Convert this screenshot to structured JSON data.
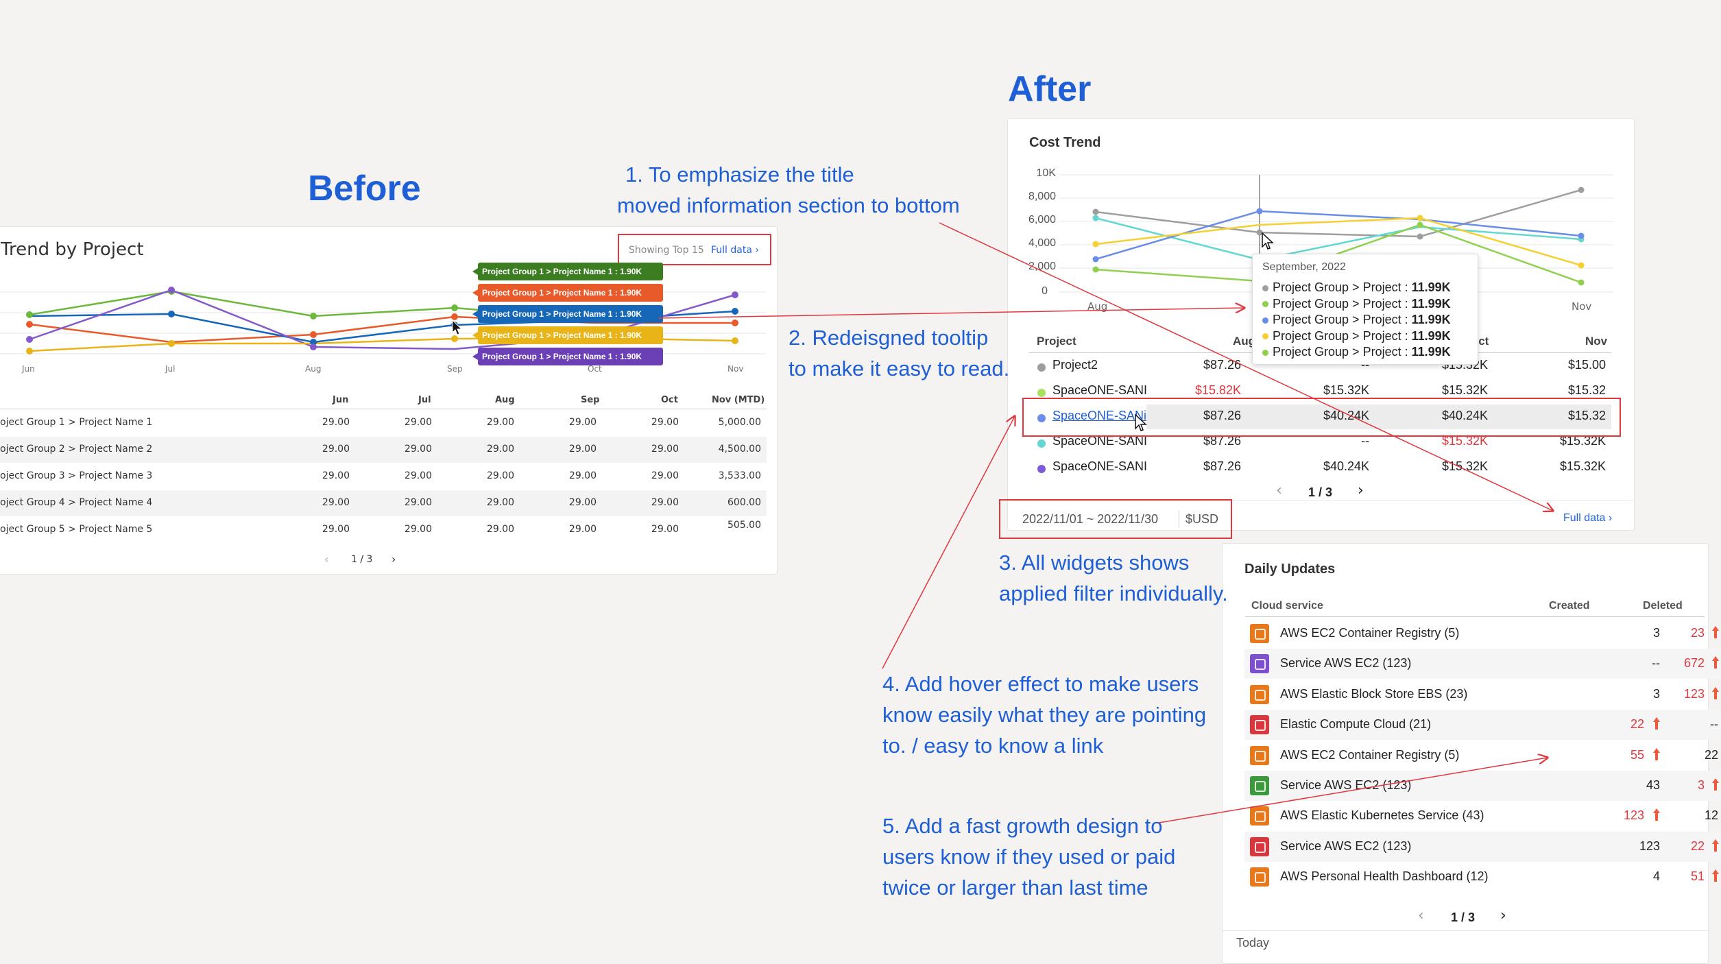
{
  "before": {
    "heading": "Before",
    "widget_title": "Trend by Project",
    "showing": "Showing Top 15",
    "full_data": "Full data",
    "x_labels": [
      "Jun",
      "Jul",
      "Aug",
      "Sep",
      "Oct",
      "Nov"
    ],
    "tooltip_rows": [
      {
        "text": "Project Group 1 > Project Name 1 : 1.90K",
        "color": "#3c7d22"
      },
      {
        "text": "Project Group 1 > Project Name 1 : 1.90K",
        "color": "#e85a2a"
      },
      {
        "text": "Project Group 1 > Project Name 1 : 1.90K",
        "color": "#1767b8"
      },
      {
        "text": "Project Group 1 > Project Name 1 : 1.90K",
        "color": "#e8b417"
      },
      {
        "text": "Project Group 1 > Project Name 1 : 1.90K",
        "color": "#6b3fb5"
      }
    ],
    "table_headers": [
      "Jun",
      "Jul",
      "Aug",
      "Sep",
      "Oct",
      "Nov (MTD)"
    ],
    "table_rows": [
      {
        "label": "oject Group 1 > Project Name 1",
        "values": [
          "29.00",
          "29.00",
          "29.00",
          "29.00",
          "29.00",
          "5,000.00"
        ]
      },
      {
        "label": "oject Group 2 > Project Name 2",
        "values": [
          "29.00",
          "29.00",
          "29.00",
          "29.00",
          "29.00",
          "4,500.00"
        ]
      },
      {
        "label": "oject Group 3 > Project Name 3",
        "values": [
          "29.00",
          "29.00",
          "29.00",
          "29.00",
          "29.00",
          "3,533.00"
        ]
      },
      {
        "label": "oject Group 4 > Project Name 4",
        "values": [
          "29.00",
          "29.00",
          "29.00",
          "29.00",
          "29.00",
          "600.00"
        ]
      },
      {
        "label": "oject Group 5 > Project Name 5",
        "values": [
          "29.00",
          "29.00",
          "29.00",
          "29.00",
          "29.00",
          "505.00"
        ]
      }
    ],
    "pagination": "1 / 3"
  },
  "after": {
    "heading": "After",
    "widget_title": "Cost Trend",
    "y_ticks": [
      "10K",
      "8,000",
      "6,000",
      "4,000",
      "2,000",
      "0"
    ],
    "x_labels": [
      "Aug",
      "Nov"
    ],
    "tooltip": {
      "title": "September, 2022",
      "rows": [
        {
          "label": "Project Group > Project",
          "value": "11.99K",
          "color": "#9e9e9e"
        },
        {
          "label": "Project Group > Project",
          "value": "11.99K",
          "color": "#8fd14f"
        },
        {
          "label": "Project Group > Project",
          "value": "11.99K",
          "color": "#6a8ee8"
        },
        {
          "label": "Project Group > Project",
          "value": "11.99K",
          "color": "#f5d031"
        },
        {
          "label": "Project Group > Project",
          "value": "11.99K",
          "color": "#8fd14f"
        }
      ]
    },
    "table_headers": {
      "project": "Project",
      "aug": "Aug",
      "oct": "Oct",
      "nov": "Nov"
    },
    "table_rows": [
      {
        "name": "Project2",
        "color": "#9e9e9e",
        "v": [
          "$87.26",
          "--",
          "$15.32K",
          "$15.00"
        ],
        "red": [
          false,
          false,
          false,
          false
        ],
        "link": false
      },
      {
        "name": "SpaceONE-SANI",
        "color": "#a8e05f",
        "v": [
          "$15.82K",
          "$15.32K",
          "$15.32K",
          "$15.32"
        ],
        "red": [
          true,
          false,
          false,
          false
        ],
        "link": false
      },
      {
        "name": "SpaceONE-SANi",
        "color": "#6a8ee8",
        "v": [
          "$87.26",
          "$40.24K",
          "$40.24K",
          "$15.32"
        ],
        "red": [
          false,
          false,
          false,
          false
        ],
        "link": true
      },
      {
        "name": "SpaceONE-SANI",
        "color": "#63d8d0",
        "v": [
          "$87.26",
          "--",
          "$15.32K",
          "$15.32K"
        ],
        "red": [
          false,
          false,
          true,
          false
        ],
        "link": false
      },
      {
        "name": "SpaceONE-SANI",
        "color": "#7e5bd6",
        "v": [
          "$87.26",
          "$40.24K",
          "$15.32K",
          "$15.32K"
        ],
        "red": [
          false,
          false,
          false,
          false
        ],
        "link": false
      }
    ],
    "pagination": "1 / 3",
    "filter_date": "2022/11/01 ~ 2022/11/30",
    "filter_currency": "$USD",
    "full_data": "Full data"
  },
  "notes": {
    "n1a": "1. To emphasize the title",
    "n1b": "moved information section to bottom",
    "n2a": "2. Redeisgned tooltip",
    "n2b": "to make it easy to read.",
    "n3a": "3. All widgets shows",
    "n3b": "applied filter individually.",
    "n4a": "4. Add hover effect to make users",
    "n4b": "know easily what they are pointing",
    "n4c": "to. / easy to know a link",
    "n5a": "5. Add a fast growth design to",
    "n5b": "users know if they used or paid",
    "n5c": "twice or larger than last time"
  },
  "daily": {
    "title": "Daily Updates",
    "col_service": "Cloud service",
    "col_created": "Created",
    "col_deleted": "Deleted",
    "rows": [
      {
        "name": "AWS EC2 Container Registry (5)",
        "icon": "#e8781a",
        "created": "3",
        "deleted": "23",
        "c_up": false,
        "d_up": true
      },
      {
        "name": "Service AWS EC2 (123)",
        "icon": "#7b4fd0",
        "created": "--",
        "deleted": "672",
        "c_up": false,
        "d_up": true
      },
      {
        "name": "AWS Elastic Block Store EBS (23)",
        "icon": "#e8781a",
        "created": "3",
        "deleted": "123",
        "c_up": false,
        "d_up": true
      },
      {
        "name": "Elastic Compute Cloud (21)",
        "icon": "#d9363e",
        "created": "22",
        "deleted": "--",
        "c_up": true,
        "d_up": false
      },
      {
        "name": "AWS EC2 Container Registry (5)",
        "icon": "#e8781a",
        "created": "55",
        "deleted": "22",
        "c_up": true,
        "d_up": false
      },
      {
        "name": "Service AWS EC2 (123)",
        "icon": "#3c9a3c",
        "created": "43",
        "deleted": "3",
        "c_up": false,
        "d_up": true
      },
      {
        "name": "AWS Elastic Kubernetes Service (43)",
        "icon": "#e8781a",
        "created": "123",
        "deleted": "12",
        "c_up": true,
        "d_up": false
      },
      {
        "name": "Service AWS EC2 (123)",
        "icon": "#d9363e",
        "created": "123",
        "deleted": "22",
        "c_up": false,
        "d_up": true
      },
      {
        "name": "AWS Personal Health Dashboard (12)",
        "icon": "#e8781a",
        "created": "4",
        "deleted": "51",
        "c_up": false,
        "d_up": true
      }
    ],
    "pagination": "1 / 3",
    "footer": "Today"
  }
}
